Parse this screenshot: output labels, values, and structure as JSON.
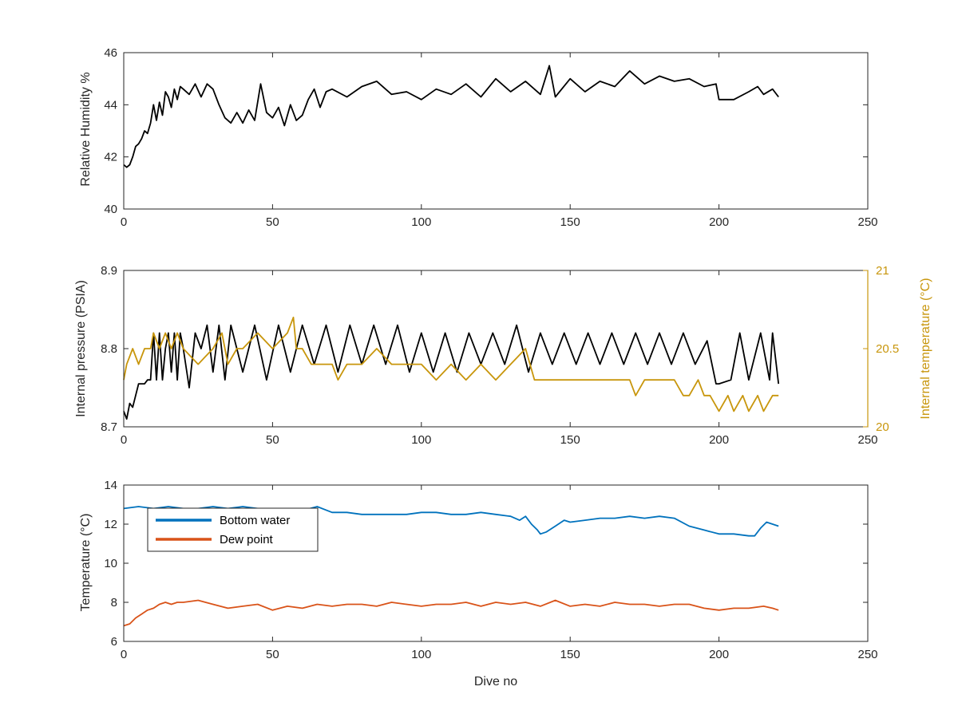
{
  "chart_data": [
    {
      "type": "line",
      "xlabel": "",
      "ylabel": "Relative Humidity %",
      "xlim": [
        0,
        250
      ],
      "ylim": [
        40,
        46
      ],
      "xticks": [
        0,
        50,
        100,
        150,
        200,
        250
      ],
      "yticks": [
        40,
        42,
        44,
        46
      ],
      "series": [
        {
          "color": "#000000",
          "x": [
            0,
            1,
            2,
            3,
            4,
            5,
            6,
            7,
            8,
            9,
            10,
            11,
            12,
            13,
            14,
            15,
            16,
            17,
            18,
            19,
            20,
            22,
            24,
            26,
            28,
            30,
            32,
            34,
            36,
            38,
            40,
            42,
            44,
            46,
            48,
            50,
            52,
            54,
            56,
            58,
            60,
            62,
            64,
            66,
            68,
            70,
            75,
            80,
            85,
            90,
            95,
            100,
            105,
            110,
            115,
            120,
            125,
            130,
            135,
            140,
            143,
            145,
            150,
            155,
            160,
            165,
            170,
            175,
            180,
            185,
            190,
            195,
            199,
            200,
            205,
            210,
            213,
            215,
            218,
            220
          ],
          "values": [
            41.7,
            41.6,
            41.7,
            42.0,
            42.4,
            42.5,
            42.7,
            43.0,
            42.9,
            43.3,
            44.0,
            43.4,
            44.1,
            43.6,
            44.5,
            44.3,
            43.9,
            44.6,
            44.2,
            44.7,
            44.6,
            44.4,
            44.8,
            44.3,
            44.8,
            44.6,
            44.0,
            43.5,
            43.3,
            43.7,
            43.3,
            43.8,
            43.4,
            44.8,
            43.7,
            43.5,
            43.9,
            43.2,
            44.0,
            43.4,
            43.6,
            44.2,
            44.6,
            43.9,
            44.5,
            44.6,
            44.3,
            44.7,
            44.9,
            44.4,
            44.5,
            44.2,
            44.6,
            44.4,
            44.8,
            44.3,
            45.0,
            44.5,
            44.9,
            44.4,
            45.5,
            44.3,
            45.0,
            44.5,
            44.9,
            44.7,
            45.3,
            44.8,
            45.1,
            44.9,
            45.0,
            44.7,
            44.8,
            44.2,
            44.2,
            44.5,
            44.7,
            44.4,
            44.6,
            44.3
          ]
        }
      ]
    },
    {
      "type": "line",
      "xlabel": "",
      "ylabel": "Internal pressure (PSIA)",
      "y2label": "Internal temperature (°C)",
      "xlim": [
        0,
        250
      ],
      "ylim": [
        8.7,
        8.9
      ],
      "y2lim": [
        20,
        21
      ],
      "xticks": [
        0,
        50,
        100,
        150,
        200,
        250
      ],
      "yticks": [
        8.7,
        8.8,
        8.9
      ],
      "y2ticks": [
        20,
        20.5,
        21
      ],
      "series": [
        {
          "axis": "left",
          "color": "#000000",
          "x": [
            0,
            1,
            2,
            3,
            4,
            5,
            6,
            7,
            8,
            9,
            10,
            11,
            12,
            13,
            14,
            15,
            16,
            17,
            18,
            19,
            20,
            22,
            24,
            26,
            28,
            30,
            32,
            34,
            36,
            40,
            44,
            48,
            52,
            56,
            60,
            64,
            68,
            72,
            76,
            80,
            84,
            88,
            92,
            96,
            100,
            104,
            108,
            112,
            116,
            120,
            124,
            128,
            132,
            136,
            140,
            144,
            148,
            152,
            156,
            160,
            164,
            168,
            172,
            176,
            180,
            184,
            188,
            192,
            196,
            199,
            200,
            204,
            207,
            210,
            214,
            217,
            218,
            220
          ],
          "values": [
            8.72,
            8.71,
            8.73,
            8.725,
            8.74,
            8.755,
            8.755,
            8.755,
            8.76,
            8.76,
            8.82,
            8.76,
            8.82,
            8.76,
            8.8,
            8.82,
            8.77,
            8.82,
            8.76,
            8.82,
            8.8,
            8.75,
            8.82,
            8.8,
            8.83,
            8.77,
            8.83,
            8.76,
            8.83,
            8.77,
            8.83,
            8.76,
            8.83,
            8.77,
            8.83,
            8.78,
            8.83,
            8.77,
            8.83,
            8.78,
            8.83,
            8.78,
            8.83,
            8.77,
            8.82,
            8.77,
            8.82,
            8.77,
            8.82,
            8.78,
            8.82,
            8.78,
            8.83,
            8.77,
            8.82,
            8.78,
            8.82,
            8.78,
            8.82,
            8.78,
            8.82,
            8.78,
            8.82,
            8.78,
            8.82,
            8.78,
            8.82,
            8.78,
            8.81,
            8.755,
            8.755,
            8.76,
            8.82,
            8.76,
            8.82,
            8.76,
            8.82,
            8.755
          ]
        },
        {
          "axis": "right",
          "color": "#c8960c",
          "x": [
            0,
            1,
            3,
            5,
            7,
            9,
            10,
            12,
            14,
            16,
            18,
            20,
            25,
            30,
            33,
            35,
            38,
            40,
            45,
            50,
            55,
            57,
            58,
            60,
            63,
            65,
            70,
            72,
            75,
            80,
            85,
            90,
            95,
            100,
            105,
            110,
            115,
            120,
            125,
            130,
            135,
            138,
            140,
            145,
            150,
            155,
            160,
            165,
            170,
            172,
            175,
            180,
            185,
            188,
            190,
            193,
            195,
            197,
            200,
            203,
            205,
            208,
            210,
            213,
            215,
            218,
            220
          ],
          "values": [
            20.3,
            20.4,
            20.5,
            20.4,
            20.5,
            20.5,
            20.6,
            20.5,
            20.6,
            20.5,
            20.6,
            20.5,
            20.4,
            20.5,
            20.6,
            20.4,
            20.5,
            20.5,
            20.6,
            20.5,
            20.6,
            20.7,
            20.5,
            20.5,
            20.4,
            20.4,
            20.4,
            20.3,
            20.4,
            20.4,
            20.5,
            20.4,
            20.4,
            20.4,
            20.3,
            20.4,
            20.3,
            20.4,
            20.3,
            20.4,
            20.5,
            20.3,
            20.3,
            20.3,
            20.3,
            20.3,
            20.3,
            20.3,
            20.3,
            20.2,
            20.3,
            20.3,
            20.3,
            20.2,
            20.2,
            20.3,
            20.2,
            20.2,
            20.1,
            20.2,
            20.1,
            20.2,
            20.1,
            20.2,
            20.1,
            20.2,
            20.2
          ]
        }
      ]
    },
    {
      "type": "line",
      "xlabel": "Dive no",
      "ylabel": "Temperature (°C)",
      "xlim": [
        0,
        250
      ],
      "ylim": [
        6,
        14
      ],
      "xticks": [
        0,
        50,
        100,
        150,
        200,
        250
      ],
      "yticks": [
        6,
        8,
        10,
        12,
        14
      ],
      "legend": {
        "placement": "top-left",
        "entries": [
          "Bottom water",
          "Dew point"
        ]
      },
      "series": [
        {
          "name": "Bottom water",
          "color": "#0072bd",
          "x": [
            0,
            5,
            10,
            15,
            20,
            25,
            30,
            35,
            40,
            45,
            50,
            55,
            60,
            65,
            70,
            75,
            80,
            85,
            90,
            95,
            100,
            105,
            110,
            115,
            120,
            125,
            130,
            133,
            135,
            137,
            139,
            140,
            142,
            145,
            148,
            150,
            155,
            160,
            165,
            170,
            175,
            180,
            185,
            190,
            195,
            200,
            205,
            210,
            212,
            214,
            216,
            218,
            220
          ],
          "values": [
            12.8,
            12.9,
            12.8,
            12.9,
            12.8,
            12.8,
            12.9,
            12.8,
            12.9,
            12.8,
            12.7,
            12.8,
            12.7,
            12.9,
            12.6,
            12.6,
            12.5,
            12.5,
            12.5,
            12.5,
            12.6,
            12.6,
            12.5,
            12.5,
            12.6,
            12.5,
            12.4,
            12.2,
            12.4,
            12.0,
            11.7,
            11.5,
            11.6,
            11.9,
            12.2,
            12.1,
            12.2,
            12.3,
            12.3,
            12.4,
            12.3,
            12.4,
            12.3,
            11.9,
            11.7,
            11.5,
            11.5,
            11.4,
            11.4,
            11.8,
            12.1,
            12.0,
            11.9
          ]
        },
        {
          "name": "Dew point",
          "color": "#d95319",
          "x": [
            0,
            2,
            4,
            6,
            8,
            10,
            12,
            14,
            16,
            18,
            20,
            25,
            30,
            35,
            40,
            45,
            50,
            55,
            60,
            65,
            70,
            75,
            80,
            85,
            90,
            95,
            100,
            105,
            110,
            115,
            120,
            125,
            130,
            135,
            140,
            145,
            150,
            155,
            160,
            165,
            170,
            175,
            180,
            185,
            190,
            195,
            200,
            205,
            210,
            215,
            218,
            220
          ],
          "values": [
            6.8,
            6.9,
            7.2,
            7.4,
            7.6,
            7.7,
            7.9,
            8.0,
            7.9,
            8.0,
            8.0,
            8.1,
            7.9,
            7.7,
            7.8,
            7.9,
            7.6,
            7.8,
            7.7,
            7.9,
            7.8,
            7.9,
            7.9,
            7.8,
            8.0,
            7.9,
            7.8,
            7.9,
            7.9,
            8.0,
            7.8,
            8.0,
            7.9,
            8.0,
            7.8,
            8.1,
            7.8,
            7.9,
            7.8,
            8.0,
            7.9,
            7.9,
            7.8,
            7.9,
            7.9,
            7.7,
            7.6,
            7.7,
            7.7,
            7.8,
            7.7,
            7.6
          ]
        }
      ]
    }
  ]
}
